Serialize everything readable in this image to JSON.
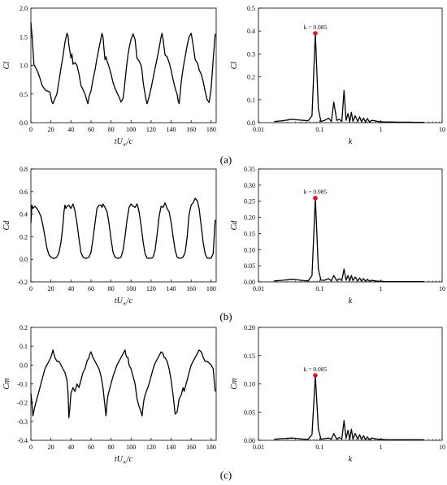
{
  "panel_labels": [
    "(a)",
    "(b)",
    "(c)"
  ],
  "peak_label": "k = 0.085",
  "colors": {
    "line": "#000000",
    "peak_marker": "#e0141e",
    "axis": "#000000"
  },
  "chart_data": [
    {
      "panel": "(a)",
      "side": "time",
      "type": "line",
      "title": "",
      "xlabel": "tU∞/c",
      "ylabel": "Cl",
      "xlim": [
        0,
        185
      ],
      "ylim": [
        0,
        2.0
      ],
      "xticks": [
        0,
        20,
        40,
        60,
        80,
        100,
        120,
        140,
        160,
        180
      ],
      "yticks": [
        0.0,
        0.5,
        1.0,
        1.5,
        2.0
      ],
      "ytick_decimals": 1,
      "grid": false,
      "series": [
        {
          "x": [
            0,
            1,
            2,
            3,
            5,
            7,
            9,
            11,
            13,
            15,
            17,
            19,
            20,
            21,
            22,
            24,
            26,
            28,
            30,
            32,
            34,
            35,
            36,
            37,
            38,
            40,
            41,
            42,
            44,
            46,
            48,
            50,
            52,
            54,
            56,
            57,
            58,
            60,
            62,
            64,
            66,
            68,
            70,
            71,
            72,
            73,
            74,
            75,
            76,
            77,
            78,
            80,
            82,
            84,
            86,
            88,
            90,
            92,
            93,
            94,
            95,
            96,
            97,
            98,
            100,
            102,
            104,
            106,
            108,
            110,
            111,
            112,
            113,
            114,
            115,
            116,
            118,
            120,
            122,
            124,
            126,
            128,
            130,
            131,
            132,
            134,
            136,
            138,
            140,
            142,
            144,
            146,
            147,
            148,
            149,
            150,
            152,
            154,
            156,
            158,
            160,
            162,
            164,
            166,
            167,
            168,
            170,
            172,
            174,
            176,
            178,
            180,
            182,
            184
          ],
          "values": [
            1.75,
            1.55,
            1.3,
            1.02,
            0.95,
            0.88,
            0.78,
            0.66,
            0.6,
            0.56,
            0.55,
            0.53,
            0.45,
            0.36,
            0.33,
            0.42,
            0.5,
            0.72,
            0.95,
            1.15,
            1.4,
            1.48,
            1.56,
            1.52,
            1.35,
            1.13,
            1.2,
            1.02,
            1.05,
            1.0,
            0.85,
            0.65,
            0.58,
            0.5,
            0.38,
            0.33,
            0.45,
            0.55,
            0.75,
            0.92,
            1.12,
            1.3,
            1.48,
            1.56,
            1.5,
            1.28,
            1.1,
            1.15,
            1.08,
            1.03,
            0.98,
            0.85,
            0.7,
            0.6,
            0.52,
            0.45,
            0.36,
            0.42,
            0.55,
            0.72,
            0.9,
            1.05,
            1.18,
            1.3,
            1.45,
            1.55,
            1.45,
            1.12,
            1.08,
            1.0,
            0.9,
            0.72,
            0.6,
            0.5,
            0.4,
            0.33,
            0.45,
            0.6,
            0.78,
            0.95,
            1.12,
            1.3,
            1.5,
            1.56,
            1.45,
            1.18,
            1.15,
            1.05,
            0.92,
            0.75,
            0.6,
            0.5,
            0.38,
            0.33,
            0.5,
            0.7,
            0.95,
            1.15,
            1.35,
            1.5,
            1.56,
            1.35,
            1.1,
            1.05,
            1.0,
            0.92,
            0.85,
            0.72,
            0.55,
            0.4,
            0.35,
            0.6,
            1.1,
            1.55
          ]
        }
      ]
    },
    {
      "panel": "(a)",
      "side": "spectrum",
      "type": "line",
      "title": "",
      "xlabel": "k",
      "ylabel": "Cl",
      "xscale": "log",
      "xlim": [
        0.01,
        10
      ],
      "ylim": [
        0,
        0.5
      ],
      "xticks": [
        0.01,
        0.1,
        1,
        10
      ],
      "xtick_labels": [
        "0.01",
        "0.1",
        "1",
        "10"
      ],
      "yticks": [
        0.0,
        0.1,
        0.2,
        0.3,
        0.4,
        0.5
      ],
      "ytick_decimals": 1,
      "grid": false,
      "series": [
        {
          "x": [
            0.018,
            0.025,
            0.035,
            0.045,
            0.055,
            0.065,
            0.075,
            0.085,
            0.095,
            0.105,
            0.12,
            0.14,
            0.155,
            0.17,
            0.19,
            0.21,
            0.23,
            0.25,
            0.27,
            0.29,
            0.31,
            0.33,
            0.35,
            0.38,
            0.42,
            0.45,
            0.48,
            0.52,
            0.56,
            0.6,
            0.65,
            0.7,
            0.8,
            0.9,
            1.0,
            1.2,
            1.5,
            2,
            3,
            4,
            5
          ],
          "values": [
            0.005,
            0.008,
            0.015,
            0.012,
            0.01,
            0.008,
            0.03,
            0.39,
            0.06,
            0.005,
            0.01,
            0.02,
            0.005,
            0.09,
            0.01,
            0.015,
            0.005,
            0.14,
            0.01,
            0.04,
            0.005,
            0.045,
            0.005,
            0.03,
            0.005,
            0.025,
            0.005,
            0.02,
            0.003,
            0.018,
            0.003,
            0.01,
            0.008,
            0.005,
            0.004,
            0.003,
            0.003,
            0.002,
            0.002,
            0.001,
            0.001
          ]
        }
      ],
      "peak": {
        "x": 0.085,
        "y": 0.39
      }
    },
    {
      "panel": "(b)",
      "side": "time",
      "type": "line",
      "title": "",
      "xlabel": "tU∞/c",
      "ylabel": "Cd",
      "xlim": [
        0,
        185
      ],
      "ylim": [
        -0.2,
        0.8
      ],
      "xticks": [
        0,
        20,
        40,
        60,
        80,
        100,
        120,
        140,
        160,
        180
      ],
      "yticks": [
        -0.2,
        0.0,
        0.2,
        0.4,
        0.6,
        0.8
      ],
      "ytick_decimals": 1,
      "grid": false,
      "series": [
        {
          "x": [
            0,
            1,
            2,
            4,
            6,
            8,
            10,
            12,
            14,
            16,
            18,
            20,
            22,
            24,
            26,
            28,
            30,
            32,
            33,
            34,
            35,
            36,
            38,
            40,
            42,
            44,
            46,
            48,
            50,
            52,
            54,
            56,
            58,
            60,
            62,
            64,
            66,
            68,
            70,
            71,
            72,
            74,
            76,
            78,
            80,
            82,
            84,
            86,
            88,
            90,
            92,
            94,
            96,
            98,
            100,
            102,
            104,
            106,
            107,
            108,
            110,
            112,
            114,
            116,
            118,
            120,
            122,
            124,
            126,
            128,
            130,
            132,
            134,
            136,
            138,
            140,
            142,
            144,
            146,
            148,
            150,
            152,
            154,
            156,
            158,
            160,
            162,
            164,
            166,
            168,
            170,
            172,
            174,
            176,
            178,
            180,
            182,
            184
          ],
          "values": [
            0.32,
            0.48,
            0.45,
            0.47,
            0.45,
            0.42,
            0.38,
            0.3,
            0.2,
            0.1,
            0.04,
            0.02,
            0.01,
            0.01,
            0.02,
            0.06,
            0.15,
            0.3,
            0.42,
            0.48,
            0.45,
            0.47,
            0.48,
            0.45,
            0.49,
            0.43,
            0.32,
            0.18,
            0.06,
            0.02,
            0.01,
            0.01,
            0.02,
            0.06,
            0.18,
            0.32,
            0.45,
            0.48,
            0.48,
            0.46,
            0.49,
            0.46,
            0.42,
            0.32,
            0.18,
            0.06,
            0.02,
            0.01,
            0.01,
            0.02,
            0.08,
            0.2,
            0.35,
            0.46,
            0.49,
            0.47,
            0.46,
            0.49,
            0.46,
            0.42,
            0.3,
            0.16,
            0.05,
            0.01,
            0.01,
            0.01,
            0.02,
            0.08,
            0.22,
            0.38,
            0.47,
            0.46,
            0.5,
            0.45,
            0.42,
            0.33,
            0.2,
            0.08,
            0.02,
            0.01,
            0.01,
            0.02,
            0.06,
            0.2,
            0.4,
            0.48,
            0.5,
            0.54,
            0.52,
            0.45,
            0.3,
            0.15,
            0.05,
            0.01,
            0.01,
            0.01,
            0.05,
            0.35
          ]
        }
      ]
    },
    {
      "panel": "(b)",
      "side": "spectrum",
      "type": "line",
      "title": "",
      "xlabel": "k",
      "ylabel": "Cd",
      "xscale": "log",
      "xlim": [
        0.01,
        10
      ],
      "ylim": [
        0,
        0.35
      ],
      "xticks": [
        0.01,
        0.1,
        1,
        10
      ],
      "xtick_labels": [
        "0.01",
        "0.1",
        "1",
        "10"
      ],
      "yticks": [
        0.0,
        0.05,
        0.1,
        0.15,
        0.2,
        0.25,
        0.3,
        0.35
      ],
      "ytick_decimals": 2,
      "grid": false,
      "series": [
        {
          "x": [
            0.018,
            0.025,
            0.035,
            0.045,
            0.055,
            0.065,
            0.075,
            0.085,
            0.095,
            0.105,
            0.12,
            0.14,
            0.155,
            0.17,
            0.19,
            0.21,
            0.23,
            0.25,
            0.27,
            0.29,
            0.31,
            0.33,
            0.35,
            0.38,
            0.42,
            0.45,
            0.48,
            0.52,
            0.56,
            0.6,
            0.65,
            0.7,
            0.8,
            0.9,
            1.0,
            1.2,
            1.5,
            2,
            3,
            4,
            5
          ],
          "values": [
            0.003,
            0.005,
            0.008,
            0.006,
            0.004,
            0.003,
            0.02,
            0.26,
            0.04,
            0.005,
            0.005,
            0.01,
            0.003,
            0.02,
            0.004,
            0.01,
            0.004,
            0.04,
            0.005,
            0.02,
            0.004,
            0.02,
            0.004,
            0.015,
            0.003,
            0.012,
            0.003,
            0.01,
            0.002,
            0.008,
            0.002,
            0.005,
            0.003,
            0.002,
            0.002,
            0.001,
            0.001,
            0.001,
            0.001,
            0.001,
            0.001
          ]
        }
      ],
      "peak": {
        "x": 0.085,
        "y": 0.26
      }
    },
    {
      "panel": "(c)",
      "side": "time",
      "type": "line",
      "title": "",
      "xlabel": "tU∞/c",
      "ylabel": "Cm",
      "xlim": [
        0,
        185
      ],
      "ylim": [
        -0.4,
        0.2
      ],
      "xticks": [
        0,
        20,
        40,
        60,
        80,
        100,
        120,
        140,
        160,
        180
      ],
      "yticks": [
        -0.4,
        -0.3,
        -0.2,
        -0.1,
        0.0,
        0.1,
        0.2
      ],
      "ytick_decimals": 1,
      "grid": false,
      "series": [
        {
          "x": [
            0,
            1,
            2,
            4,
            6,
            8,
            10,
            12,
            14,
            16,
            18,
            20,
            21,
            22,
            23,
            24,
            26,
            28,
            30,
            32,
            34,
            36,
            37,
            38,
            39,
            40,
            42,
            44,
            46,
            48,
            50,
            52,
            54,
            56,
            58,
            59,
            60,
            62,
            64,
            66,
            68,
            70,
            72,
            74,
            75,
            76,
            77,
            78,
            80,
            82,
            84,
            86,
            88,
            90,
            92,
            94,
            95,
            96,
            97,
            98,
            100,
            102,
            104,
            106,
            108,
            110,
            111,
            112,
            113,
            114,
            116,
            118,
            120,
            122,
            124,
            126,
            128,
            130,
            132,
            133,
            134,
            136,
            138,
            140,
            142,
            144,
            146,
            148,
            150,
            152,
            153,
            154,
            156,
            158,
            160,
            162,
            164,
            166,
            168,
            170,
            171,
            172,
            174,
            176,
            178,
            180,
            182,
            184
          ],
          "values": [
            -0.15,
            -0.2,
            -0.27,
            -0.22,
            -0.18,
            -0.14,
            -0.1,
            -0.06,
            -0.02,
            0.0,
            0.02,
            0.04,
            0.06,
            0.08,
            0.06,
            0.04,
            0.02,
            0.02,
            0.0,
            -0.02,
            -0.04,
            -0.08,
            -0.14,
            -0.28,
            -0.22,
            -0.15,
            -0.12,
            -0.14,
            -0.1,
            -0.12,
            -0.08,
            -0.04,
            -0.02,
            0.02,
            0.04,
            0.06,
            0.07,
            0.04,
            0.02,
            0.0,
            -0.02,
            -0.06,
            -0.12,
            -0.22,
            -0.27,
            -0.2,
            -0.16,
            -0.14,
            -0.1,
            -0.06,
            -0.03,
            0.0,
            0.02,
            0.04,
            0.06,
            0.08,
            0.05,
            0.04,
            0.04,
            0.0,
            -0.02,
            -0.06,
            -0.1,
            -0.18,
            -0.22,
            -0.25,
            -0.27,
            -0.22,
            -0.18,
            -0.16,
            -0.13,
            -0.1,
            -0.06,
            -0.02,
            0.01,
            0.03,
            0.05,
            0.07,
            0.06,
            0.04,
            0.04,
            0.02,
            -0.02,
            -0.08,
            -0.16,
            -0.26,
            -0.25,
            -0.18,
            -0.16,
            -0.12,
            -0.14,
            -0.12,
            -0.08,
            -0.04,
            0.0,
            0.02,
            0.04,
            0.06,
            0.08,
            0.07,
            0.06,
            0.04,
            0.02,
            0.02,
            0.01,
            0.0,
            -0.02,
            -0.14
          ]
        }
      ]
    },
    {
      "panel": "(c)",
      "side": "spectrum",
      "type": "line",
      "title": "",
      "xlabel": "k",
      "ylabel": "Cm",
      "xscale": "log",
      "xlim": [
        0.01,
        10
      ],
      "ylim": [
        0,
        0.2
      ],
      "xticks": [
        0.01,
        0.1,
        1,
        10
      ],
      "xtick_labels": [
        "0.01",
        "0.1",
        "1",
        "10"
      ],
      "yticks": [
        0.0,
        0.05,
        0.1,
        0.15,
        0.2
      ],
      "ytick_decimals": 2,
      "grid": false,
      "series": [
        {
          "x": [
            0.018,
            0.025,
            0.035,
            0.045,
            0.055,
            0.065,
            0.075,
            0.085,
            0.095,
            0.105,
            0.12,
            0.14,
            0.155,
            0.17,
            0.19,
            0.21,
            0.23,
            0.25,
            0.27,
            0.29,
            0.31,
            0.33,
            0.35,
            0.38,
            0.42,
            0.45,
            0.48,
            0.52,
            0.56,
            0.6,
            0.65,
            0.7,
            0.8,
            0.9,
            1.0,
            1.2,
            1.5,
            2,
            3,
            4,
            5
          ],
          "values": [
            0.002,
            0.003,
            0.004,
            0.003,
            0.002,
            0.002,
            0.01,
            0.115,
            0.02,
            0.002,
            0.003,
            0.004,
            0.002,
            0.012,
            0.002,
            0.005,
            0.002,
            0.035,
            0.003,
            0.018,
            0.002,
            0.02,
            0.002,
            0.012,
            0.002,
            0.01,
            0.002,
            0.008,
            0.001,
            0.006,
            0.001,
            0.004,
            0.003,
            0.002,
            0.002,
            0.001,
            0.001,
            0.001,
            0.001,
            0.001,
            0.001
          ]
        }
      ],
      "peak": {
        "x": 0.085,
        "y": 0.115
      }
    }
  ]
}
